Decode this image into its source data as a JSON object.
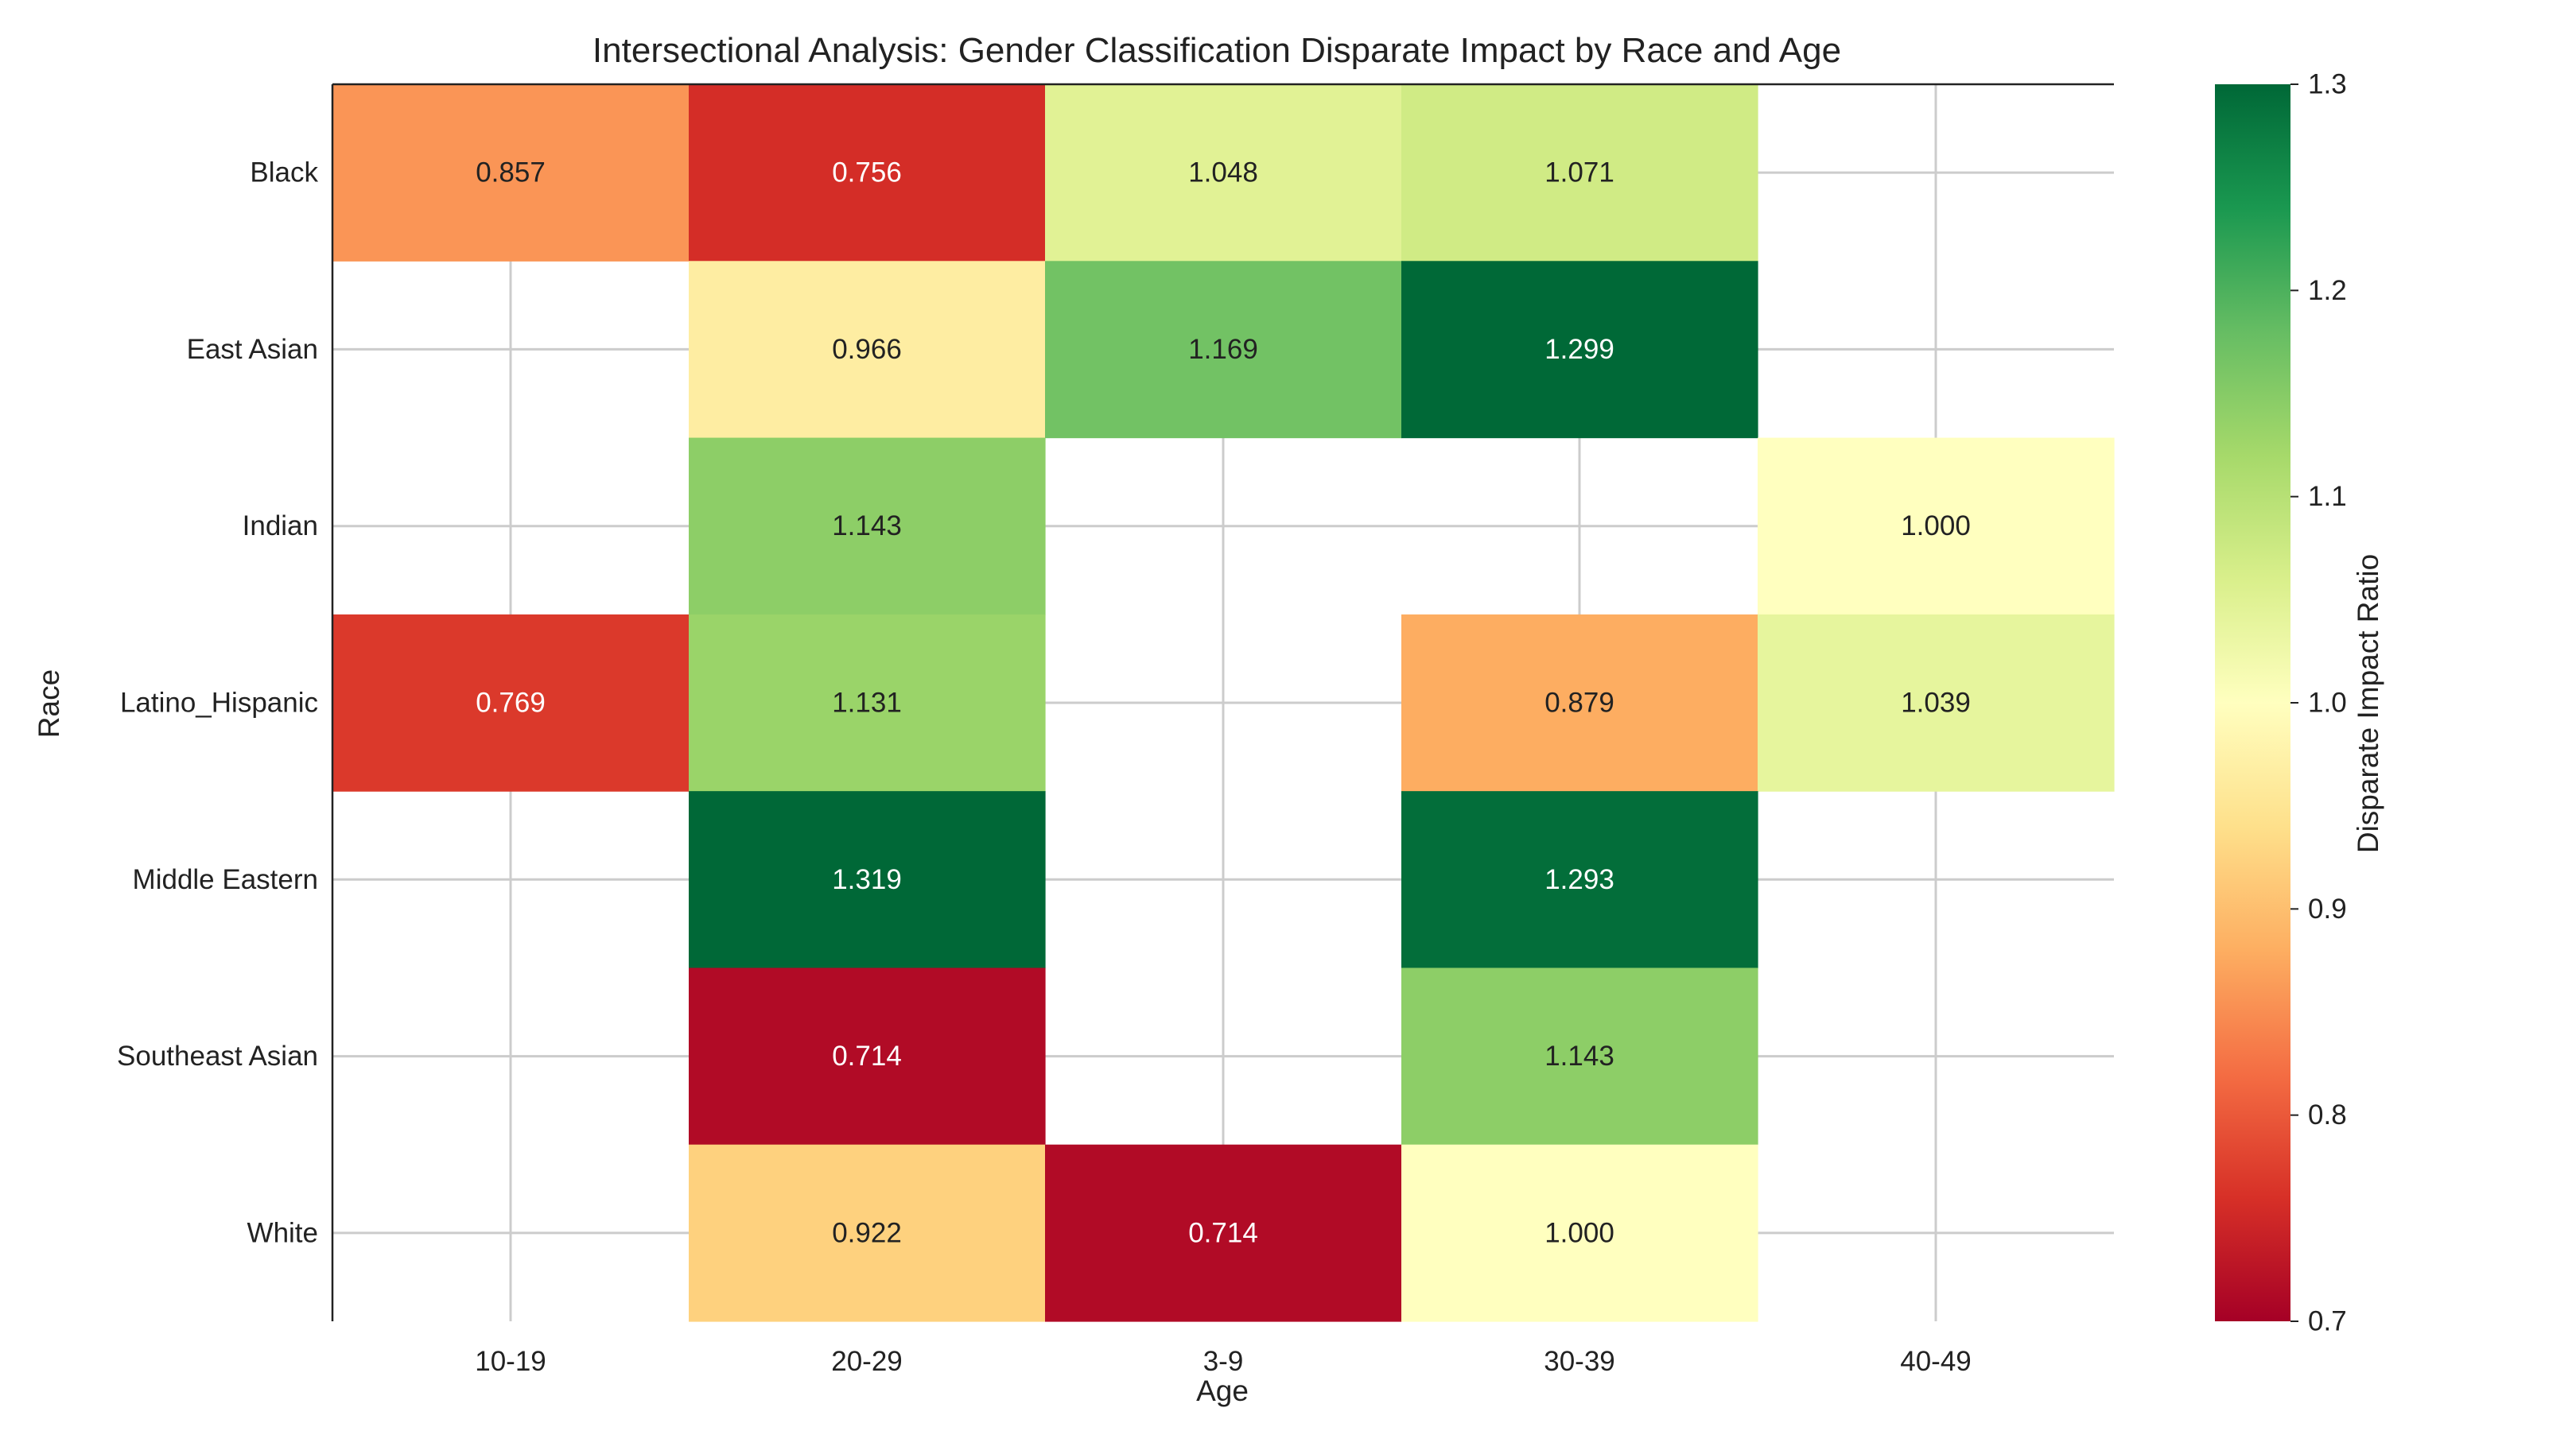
{
  "chart_data": {
    "type": "heatmap",
    "title": "Intersectional Analysis: Gender Classification Disparate Impact by Race and Age",
    "xlabel": "Age",
    "ylabel": "Race",
    "x_categories": [
      "10-19",
      "20-29",
      "3-9",
      "30-39",
      "40-49"
    ],
    "y_categories": [
      "Black",
      "East Asian",
      "Indian",
      "Latino_Hispanic",
      "Middle Eastern",
      "Southeast Asian",
      "White"
    ],
    "values": [
      [
        0.857,
        0.756,
        1.048,
        1.071,
        null
      ],
      [
        null,
        0.966,
        1.169,
        1.299,
        null
      ],
      [
        null,
        1.143,
        null,
        null,
        1.0
      ],
      [
        0.769,
        1.131,
        null,
        0.879,
        1.039
      ],
      [
        null,
        1.319,
        null,
        1.293,
        null
      ],
      [
        null,
        0.714,
        null,
        1.143,
        null
      ],
      [
        null,
        0.922,
        0.714,
        1.0,
        null
      ]
    ],
    "value_labels": [
      [
        "0.857",
        "0.756",
        "1.048",
        "1.071",
        ""
      ],
      [
        "",
        "0.966",
        "1.169",
        "1.299",
        ""
      ],
      [
        "",
        "1.143",
        "",
        "",
        "1.000"
      ],
      [
        "0.769",
        "1.131",
        "",
        "0.879",
        "1.039"
      ],
      [
        "",
        "1.319",
        "",
        "1.293",
        ""
      ],
      [
        "",
        "0.714",
        "",
        "1.143",
        ""
      ],
      [
        "",
        "0.922",
        "0.714",
        "1.000",
        ""
      ]
    ],
    "colorbar": {
      "label": "Disparate Impact Ratio",
      "vmin": 0.7,
      "vmax": 1.3,
      "ticks": [
        0.7,
        0.8,
        0.9,
        1.0,
        1.1,
        1.2,
        1.3
      ],
      "tick_labels": [
        "0.7",
        "0.8",
        "0.9",
        "1.0",
        "1.1",
        "1.2",
        "1.3"
      ],
      "colormap": "RdYlGn"
    },
    "grid": true
  }
}
